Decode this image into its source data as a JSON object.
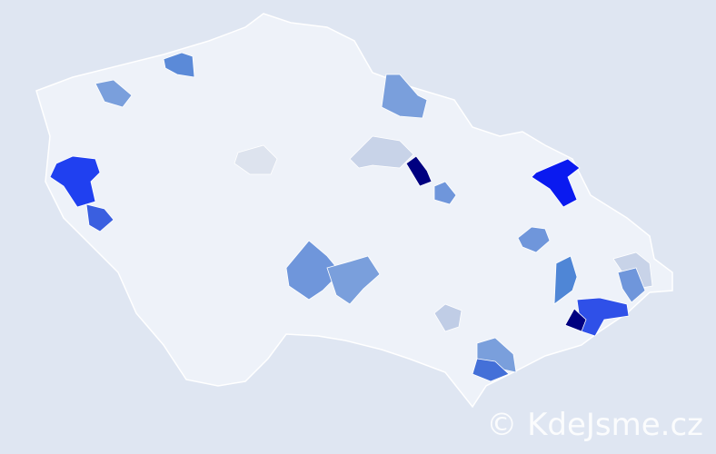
{
  "watermark": "© KdeJsme.cz",
  "colors": {
    "background": "#dfe6f2",
    "base": "#eef2f9",
    "border": "#ffffff",
    "scale_light": "#c8d3e8",
    "scale_mid": "#7a9fdc",
    "scale_strong": "#2040f0",
    "scale_max": "#000080"
  },
  "regions": [
    {
      "name": "region-north-1",
      "fill": "#5b8ad8"
    },
    {
      "name": "region-north-2",
      "fill": "#7a9fdc"
    },
    {
      "name": "region-northeast-1",
      "fill": "#7a9fdc"
    },
    {
      "name": "region-west-1",
      "fill": "#2040f0"
    },
    {
      "name": "region-west-2",
      "fill": "#3a5fe0"
    },
    {
      "name": "region-central-light",
      "fill": "#dde3ee"
    },
    {
      "name": "region-north-light",
      "fill": "#c8d3e8"
    },
    {
      "name": "region-dark-1",
      "fill": "#000080"
    },
    {
      "name": "region-east-1",
      "fill": "#6f96db"
    },
    {
      "name": "region-northeast-blue",
      "fill": "#0a1af0"
    },
    {
      "name": "region-east-2",
      "fill": "#6f96db"
    },
    {
      "name": "region-south-1",
      "fill": "#6f96db"
    },
    {
      "name": "region-south-2",
      "fill": "#7a9fdc"
    },
    {
      "name": "region-south-light",
      "fill": "#c0cde6"
    },
    {
      "name": "region-southeast-1",
      "fill": "#7a9fdc"
    },
    {
      "name": "region-southeast-2",
      "fill": "#4470d8"
    },
    {
      "name": "region-moravia-1",
      "fill": "#4f86d6"
    },
    {
      "name": "region-moravia-2",
      "fill": "#2f50e8"
    },
    {
      "name": "region-moravia-dark",
      "fill": "#000080"
    },
    {
      "name": "region-east-light",
      "fill": "#c8d3e8"
    },
    {
      "name": "region-east-3",
      "fill": "#6f96db"
    }
  ]
}
